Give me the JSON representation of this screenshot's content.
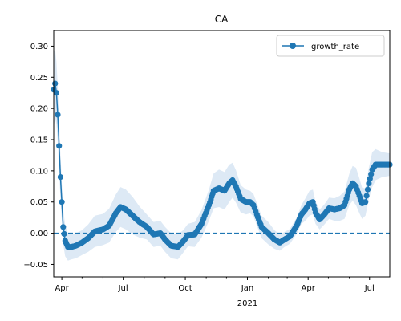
{
  "chart_data": {
    "type": "line",
    "title": "CA",
    "xlabel": "",
    "ylabel": "",
    "x_range": [
      "2020-03-20",
      "2021-07-31"
    ],
    "ylim": [
      -0.07,
      0.325
    ],
    "y_ticks": [
      -0.05,
      0.0,
      0.05,
      0.1,
      0.15,
      0.2,
      0.25,
      0.3
    ],
    "y_tick_labels": [
      "−0.05",
      "0.00",
      "0.05",
      "0.10",
      "0.15",
      "0.20",
      "0.25",
      "0.30"
    ],
    "x_major_ticks": [
      {
        "date": "2020-04-01",
        "label": "Apr"
      },
      {
        "date": "2020-07-01",
        "label": "Jul"
      },
      {
        "date": "2020-10-01",
        "label": "Oct"
      },
      {
        "date": "2021-01-01",
        "label": "Jan"
      },
      {
        "date": "2021-04-01",
        "label": "Apr"
      },
      {
        "date": "2021-07-01",
        "label": "Jul"
      }
    ],
    "x_year_label": {
      "date": "2021-01-01",
      "label": "2021"
    },
    "x_minor_ticks": [
      "2020-05-01",
      "2020-06-01",
      "2020-08-01",
      "2020-09-01",
      "2020-11-01",
      "2020-12-01",
      "2021-02-01",
      "2021-03-01",
      "2021-05-01",
      "2021-06-01"
    ],
    "legend": {
      "position": "top-right",
      "entries": [
        "growth_rate"
      ]
    },
    "reference_line": {
      "y": 0.0,
      "style": "dashed"
    },
    "grid": false,
    "colors": {
      "series": "#1f77b4",
      "band": "#c6dbef"
    },
    "series": [
      {
        "name": "growth_rate",
        "points": [
          [
            "2020-03-20",
            0.23
          ],
          [
            "2020-03-22",
            0.24
          ],
          [
            "2020-03-24",
            0.225
          ],
          [
            "2020-03-26",
            0.19
          ],
          [
            "2020-03-28",
            0.14
          ],
          [
            "2020-03-30",
            0.09
          ],
          [
            "2020-04-01",
            0.05
          ],
          [
            "2020-04-03",
            0.01
          ],
          [
            "2020-04-06",
            -0.012
          ],
          [
            "2020-04-10",
            -0.022
          ],
          [
            "2020-04-15",
            -0.022
          ],
          [
            "2020-04-22",
            -0.02
          ],
          [
            "2020-05-01",
            -0.015
          ],
          [
            "2020-05-10",
            -0.008
          ],
          [
            "2020-05-20",
            0.003
          ],
          [
            "2020-06-01",
            0.006
          ],
          [
            "2020-06-10",
            0.012
          ],
          [
            "2020-06-20",
            0.032
          ],
          [
            "2020-06-27",
            0.042
          ],
          [
            "2020-07-05",
            0.038
          ],
          [
            "2020-07-15",
            0.028
          ],
          [
            "2020-07-25",
            0.018
          ],
          [
            "2020-08-05",
            0.01
          ],
          [
            "2020-08-15",
            -0.002
          ],
          [
            "2020-08-25",
            0.0
          ],
          [
            "2020-09-01",
            -0.01
          ],
          [
            "2020-09-10",
            -0.02
          ],
          [
            "2020-09-20",
            -0.022
          ],
          [
            "2020-09-28",
            -0.013
          ],
          [
            "2020-10-05",
            -0.003
          ],
          [
            "2020-10-15",
            -0.002
          ],
          [
            "2020-10-25",
            0.015
          ],
          [
            "2020-11-05",
            0.045
          ],
          [
            "2020-11-12",
            0.068
          ],
          [
            "2020-11-20",
            0.072
          ],
          [
            "2020-11-28",
            0.068
          ],
          [
            "2020-12-05",
            0.08
          ],
          [
            "2020-12-10",
            0.085
          ],
          [
            "2020-12-15",
            0.075
          ],
          [
            "2020-12-22",
            0.055
          ],
          [
            "2020-12-30",
            0.05
          ],
          [
            "2021-01-05",
            0.05
          ],
          [
            "2021-01-10",
            0.045
          ],
          [
            "2021-01-15",
            0.03
          ],
          [
            "2021-01-22",
            0.01
          ],
          [
            "2021-02-01",
            0.0
          ],
          [
            "2021-02-10",
            -0.01
          ],
          [
            "2021-02-18",
            -0.015
          ],
          [
            "2021-02-25",
            -0.01
          ],
          [
            "2021-03-05",
            -0.005
          ],
          [
            "2021-03-15",
            0.012
          ],
          [
            "2021-03-22",
            0.03
          ],
          [
            "2021-03-28",
            0.038
          ],
          [
            "2021-04-03",
            0.048
          ],
          [
            "2021-04-08",
            0.05
          ],
          [
            "2021-04-12",
            0.033
          ],
          [
            "2021-04-18",
            0.022
          ],
          [
            "2021-04-25",
            0.03
          ],
          [
            "2021-05-02",
            0.04
          ],
          [
            "2021-05-10",
            0.038
          ],
          [
            "2021-05-18",
            0.04
          ],
          [
            "2021-05-25",
            0.045
          ],
          [
            "2021-06-01",
            0.07
          ],
          [
            "2021-06-06",
            0.08
          ],
          [
            "2021-06-11",
            0.075
          ],
          [
            "2021-06-16",
            0.06
          ],
          [
            "2021-06-20",
            0.048
          ],
          [
            "2021-06-25",
            0.05
          ],
          [
            "2021-06-30",
            0.08
          ],
          [
            "2021-07-05",
            0.102
          ],
          [
            "2021-07-10",
            0.11
          ],
          [
            "2021-07-20",
            0.11
          ],
          [
            "2021-07-31",
            0.11
          ]
        ],
        "band_halfwidth": [
          0.06,
          0.055,
          0.05,
          0.045,
          0.04,
          0.035,
          0.03,
          0.028,
          0.025,
          0.022,
          0.02,
          0.02,
          0.02,
          0.022,
          0.025,
          0.025,
          0.027,
          0.03,
          0.032,
          0.032,
          0.03,
          0.025,
          0.02,
          0.02,
          0.02,
          0.02,
          0.02,
          0.02,
          0.018,
          0.018,
          0.02,
          0.022,
          0.025,
          0.028,
          0.03,
          0.03,
          0.03,
          0.028,
          0.026,
          0.022,
          0.02,
          0.018,
          0.018,
          0.018,
          0.018,
          0.018,
          0.015,
          0.013,
          0.012,
          0.012,
          0.013,
          0.015,
          0.018,
          0.02,
          0.02,
          0.018,
          0.016,
          0.016,
          0.017,
          0.018,
          0.02,
          0.022,
          0.025,
          0.028,
          0.03,
          0.028,
          0.025,
          0.022,
          0.025,
          0.028,
          0.025,
          0.02,
          0.018
        ]
      }
    ]
  }
}
